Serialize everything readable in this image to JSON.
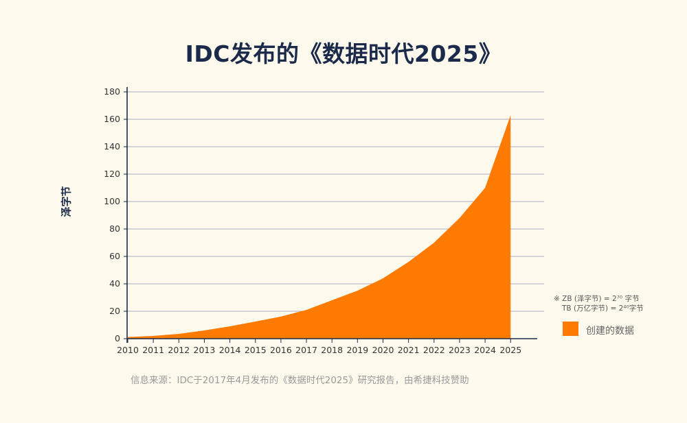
{
  "title": "IDC发布的《数据时代2025》",
  "source": "信息来源：IDC于2017年4月发布的《数据时代2025》研究报告，由希捷科技赞助",
  "notes": [
    "※ ZB (泽字节) = 2⁷⁰ 字节",
    "TB (万亿字节) = 2⁴⁰字节"
  ],
  "colors": {
    "area": "#ff7a00",
    "grid": "#a9acc0",
    "axis": "#1b2a4a",
    "background": "#fdf9ec"
  },
  "chart_data": {
    "type": "area",
    "title": "IDC发布的《数据时代2025》",
    "xlabel": "",
    "ylabel": "泽字节",
    "x": [
      "2010",
      "2011",
      "2012",
      "2013",
      "2014",
      "2015",
      "2016",
      "2017",
      "2018",
      "2019",
      "2020",
      "2021",
      "2022",
      "2023",
      "2024",
      "2025"
    ],
    "series": [
      {
        "name": "创建的数据",
        "values": [
          1.2,
          2,
          3.5,
          6,
          9,
          12.5,
          16.1,
          21,
          28,
          35,
          44,
          56,
          70,
          88,
          110,
          163
        ]
      }
    ],
    "ylim": [
      0,
      180
    ],
    "yticks": [
      "0",
      "20",
      "40",
      "60",
      "80",
      "100",
      "120",
      "140",
      "160",
      "180"
    ],
    "grid": true,
    "legend": "right"
  }
}
